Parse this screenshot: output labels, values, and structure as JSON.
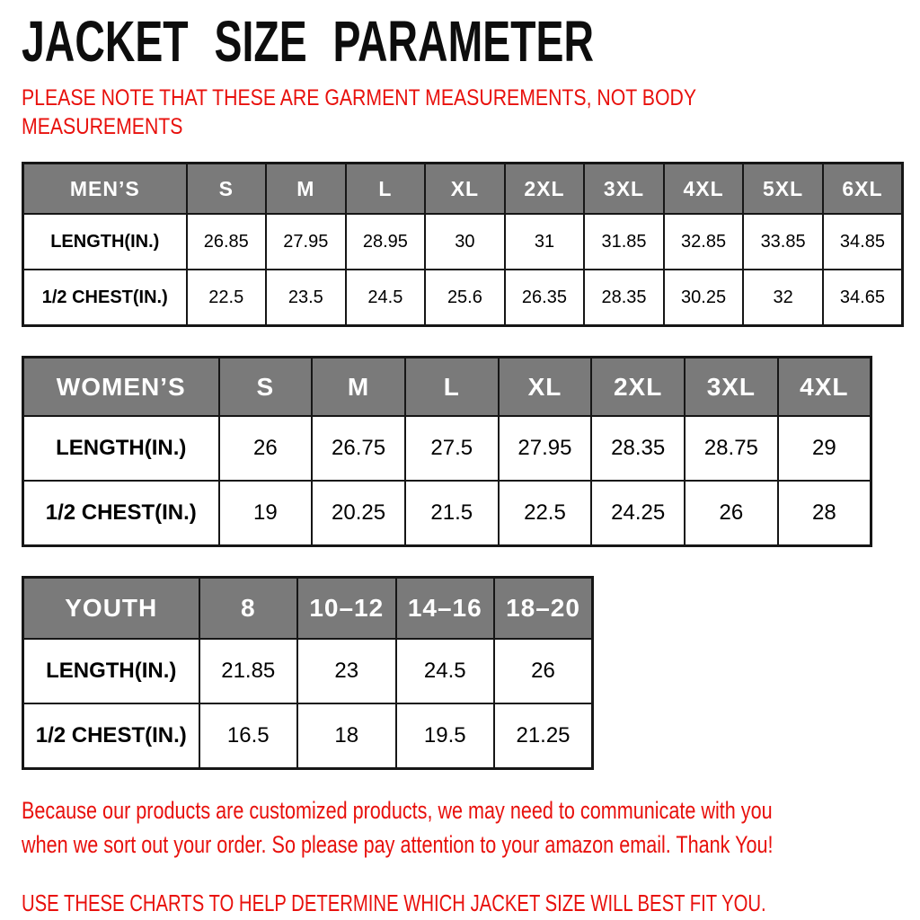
{
  "page": {
    "title": "JACKET SIZE PARAMETER"
  },
  "note": {
    "line1": "PLEASE NOTE THAT THESE ARE GARMENT MEASUREMENTS, NOT BODY",
    "line2": "MEASUREMENTS"
  },
  "colors": {
    "accent_red": "#e8100c",
    "header_gray": "#7a7a7a",
    "border_black": "#161616"
  },
  "tables": [
    {
      "id": "mens",
      "name": "MEN’S",
      "columns": [
        "S",
        "M",
        "L",
        "XL",
        "2XL",
        "3XL",
        "4XL",
        "5XL",
        "6XL"
      ],
      "rows": [
        {
          "label": "LENGTH(IN.)",
          "values": [
            "26.85",
            "27.95",
            "28.95",
            "30",
            "31",
            "31.85",
            "32.85",
            "33.85",
            "34.85"
          ]
        },
        {
          "label": "1/2 CHEST(IN.)",
          "values": [
            "22.5",
            "23.5",
            "24.5",
            "25.6",
            "26.35",
            "28.35",
            "30.25",
            "32",
            "34.65"
          ]
        }
      ]
    },
    {
      "id": "womens",
      "name": "WOMEN’S",
      "columns": [
        "S",
        "M",
        "L",
        "XL",
        "2XL",
        "3XL",
        "4XL"
      ],
      "rows": [
        {
          "label": "LENGTH(IN.)",
          "values": [
            "26",
            "26.75",
            "27.5",
            "27.95",
            "28.35",
            "28.75",
            "29"
          ]
        },
        {
          "label": "1/2 CHEST(IN.)",
          "values": [
            "19",
            "20.25",
            "21.5",
            "22.5",
            "24.25",
            "26",
            "28"
          ]
        }
      ]
    },
    {
      "id": "youth",
      "name": "YOUTH",
      "columns": [
        "8",
        "10–12",
        "14–16",
        "18–20"
      ],
      "rows": [
        {
          "label": "LENGTH(IN.)",
          "values": [
            "21.85",
            "23",
            "24.5",
            "26"
          ]
        },
        {
          "label": "1/2 CHEST(IN.)",
          "values": [
            "16.5",
            "18",
            "19.5",
            "21.25"
          ]
        }
      ]
    }
  ],
  "footer": {
    "para_line1": "Because our products are customized products, we may need to communicate with you",
    "para_line2": "when we sort out your order. So please pay attention to your amazon email. Thank You!",
    "charts_line": "USE THESE CHARTS TO HELP DETERMINE WHICH JACKET SIZE WILL BEST FIT YOU."
  }
}
